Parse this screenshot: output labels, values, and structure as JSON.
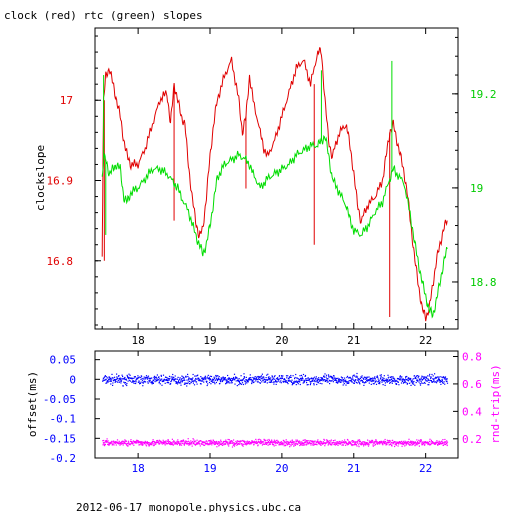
{
  "header": {
    "title": "clock (red) rtc (green) slopes"
  },
  "footer": {
    "caption": "2012-06-17 monopole.physics.ubc.ca"
  },
  "colors": {
    "red": "#e00000",
    "green": "#00dd00",
    "blue": "#0000ff",
    "magenta": "#ff00ff",
    "axis": "#000000"
  },
  "chart_data": [
    {
      "type": "line",
      "title": "clock (red) rtc (green) slopes",
      "xlabel": "",
      "ylabel": "clockslope",
      "y2label": "",
      "xlim": [
        17.4,
        22.45
      ],
      "ylim": [
        16.715,
        17.09
      ],
      "y2lim": [
        18.7,
        19.34
      ],
      "xticks": [
        "18",
        "19",
        "20",
        "21",
        "22"
      ],
      "yticks": [
        "16.8",
        "16.9",
        "17"
      ],
      "y2ticks": [
        "18.8",
        "19",
        "19.2"
      ],
      "grid": false,
      "series": [
        {
          "name": "clock",
          "axis": "left",
          "color": "#e00000",
          "x": [
            17.5,
            17.52,
            17.55,
            17.6,
            17.65,
            17.7,
            17.75,
            17.8,
            17.85,
            17.9,
            18.0,
            18.1,
            18.2,
            18.3,
            18.4,
            18.45,
            18.5,
            18.55,
            18.6,
            18.65,
            18.7,
            18.75,
            18.8,
            18.85,
            18.9,
            18.95,
            19.0,
            19.05,
            19.1,
            19.2,
            19.3,
            19.4,
            19.45,
            19.5,
            19.55,
            19.6,
            19.7,
            19.75,
            19.8,
            19.9,
            20.0,
            20.1,
            20.2,
            20.3,
            20.4,
            20.5,
            20.55,
            20.6,
            20.65,
            20.7,
            20.8,
            20.9,
            20.95,
            21.0,
            21.05,
            21.1,
            21.2,
            21.3,
            21.4,
            21.45,
            21.5,
            21.55,
            21.6,
            21.65,
            21.7,
            21.75,
            21.8,
            21.85,
            21.9,
            21.95,
            22.0,
            22.05,
            22.1,
            22.15,
            22.2,
            22.25,
            22.3
          ],
          "y": [
            16.81,
            17.0,
            17.03,
            17.04,
            17.02,
            17.0,
            16.98,
            16.95,
            16.93,
            16.92,
            16.92,
            16.94,
            16.97,
            17.0,
            17.01,
            16.97,
            17.02,
            17.0,
            16.98,
            16.97,
            16.92,
            16.88,
            16.85,
            16.83,
            16.84,
            16.88,
            16.93,
            16.97,
            17.0,
            17.03,
            17.05,
            17.0,
            16.96,
            16.98,
            17.03,
            17.0,
            16.96,
            16.94,
            16.93,
            16.95,
            16.98,
            17.01,
            17.04,
            17.05,
            17.02,
            17.06,
            17.06,
            17.0,
            16.95,
            16.93,
            16.96,
            16.97,
            16.94,
            16.91,
            16.87,
            16.85,
            16.87,
            16.88,
            16.9,
            16.93,
            16.96,
            16.97,
            16.95,
            16.93,
            16.91,
            16.88,
            16.84,
            16.8,
            16.77,
            16.74,
            16.73,
            16.74,
            16.77,
            16.8,
            16.82,
            16.84,
            16.85
          ],
          "spikes": [
            {
              "x": 17.53,
              "y": 16.8
            },
            {
              "x": 18.5,
              "y": 16.85
            },
            {
              "x": 19.5,
              "y": 16.89
            },
            {
              "x": 20.45,
              "y": 16.82
            },
            {
              "x": 21.5,
              "y": 16.73
            }
          ]
        },
        {
          "name": "rtc",
          "axis": "right",
          "color": "#00dd00",
          "x": [
            17.5,
            17.52,
            17.55,
            17.6,
            17.65,
            17.7,
            17.75,
            17.8,
            17.85,
            17.9,
            18.0,
            18.1,
            18.2,
            18.3,
            18.4,
            18.5,
            18.55,
            18.6,
            18.7,
            18.8,
            18.85,
            18.9,
            18.95,
            19.0,
            19.05,
            19.1,
            19.2,
            19.3,
            19.4,
            19.5,
            19.55,
            19.6,
            19.7,
            19.8,
            19.9,
            20.0,
            20.1,
            20.2,
            20.3,
            20.4,
            20.5,
            20.55,
            20.6,
            20.65,
            20.7,
            20.8,
            20.9,
            20.95,
            21.0,
            21.1,
            21.2,
            21.3,
            21.4,
            21.5,
            21.55,
            21.6,
            21.7,
            21.8,
            21.85,
            21.9,
            21.95,
            22.0,
            22.05,
            22.1,
            22.15,
            22.2,
            22.25,
            22.3
          ],
          "y": [
            19.02,
            19.06,
            19.06,
            19.03,
            19.04,
            19.05,
            19.04,
            18.98,
            18.97,
            18.99,
            19.0,
            19.02,
            19.04,
            19.04,
            19.03,
            19.01,
            19.0,
            18.98,
            18.95,
            18.9,
            18.88,
            18.86,
            18.88,
            18.92,
            18.97,
            19.02,
            19.05,
            19.06,
            19.07,
            19.06,
            19.05,
            19.03,
            19.0,
            19.02,
            19.03,
            19.04,
            19.05,
            19.07,
            19.08,
            19.09,
            19.09,
            19.1,
            19.11,
            19.07,
            19.02,
            18.99,
            18.96,
            18.93,
            18.91,
            18.9,
            18.92,
            18.95,
            18.97,
            19.02,
            19.04,
            19.03,
            19.01,
            18.93,
            18.88,
            18.84,
            18.8,
            18.77,
            18.74,
            18.73,
            18.76,
            18.8,
            18.84,
            18.87
          ],
          "spikes": [
            {
              "x": 17.52,
              "y": 19.24
            },
            {
              "x": 17.55,
              "y": 18.9
            },
            {
              "x": 20.55,
              "y": 19.25
            },
            {
              "x": 21.53,
              "y": 19.27
            }
          ]
        }
      ]
    },
    {
      "type": "scatter",
      "title": "",
      "xlabel": "",
      "ylabel": "offset(ms)",
      "y2label": "rnd-trip(ms)",
      "xlim": [
        17.4,
        22.45
      ],
      "ylim": [
        -0.2,
        0.072
      ],
      "y2lim": [
        0.06,
        0.84
      ],
      "xticks": [
        "18",
        "19",
        "20",
        "21",
        "22"
      ],
      "yticks": [
        "0.05",
        "0",
        "-0.05",
        "-0.1",
        "-0.15",
        "-0.2"
      ],
      "y2ticks": [
        "0.2",
        "0.4",
        "0.6",
        "0.8"
      ],
      "grid": false,
      "series": [
        {
          "name": "offset",
          "axis": "left",
          "color": "#0000ff",
          "x_range": [
            17.5,
            22.3
          ],
          "center": 0.0,
          "spread": 0.012
        },
        {
          "name": "rnd-trip",
          "axis": "right",
          "color": "#ff00ff",
          "x_range": [
            17.5,
            22.3
          ],
          "center": 0.175,
          "spread": 0.022
        }
      ]
    }
  ]
}
